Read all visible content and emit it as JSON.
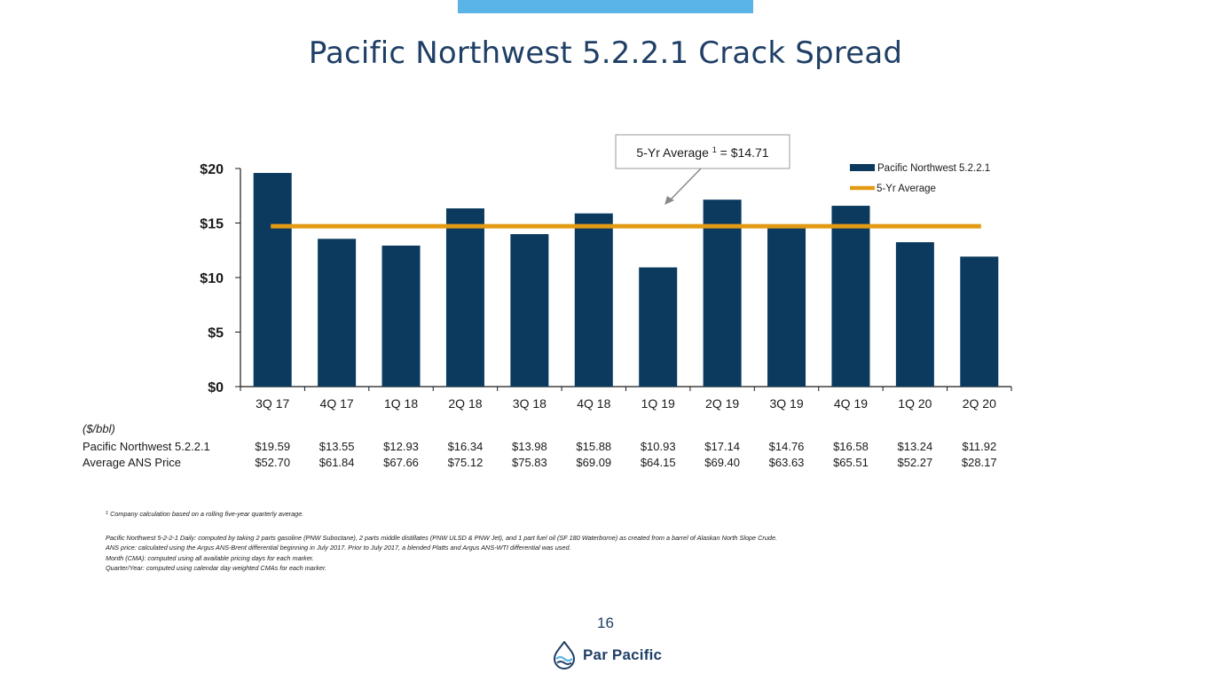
{
  "title": "Pacific Northwest 5.2.2.1 Crack Spread",
  "page_number": "16",
  "brand": {
    "name": "Par Pacific",
    "logo_icon": "droplet-wave-icon",
    "color": "#1f3f66",
    "accent": "#5bb4e6"
  },
  "callout": {
    "prefix": "5-Yr Average ",
    "sup": "1",
    "suffix": " = $14.71"
  },
  "chart_data": {
    "type": "bar",
    "categories": [
      "3Q 17",
      "4Q 17",
      "1Q 18",
      "2Q 18",
      "3Q 18",
      "4Q 18",
      "1Q 19",
      "2Q 19",
      "3Q 19",
      "4Q 19",
      "1Q 20",
      "2Q 20"
    ],
    "series": [
      {
        "name": "Pacific Northwest 5.2.2.1",
        "type": "bar",
        "color": "#0b3a5e",
        "values": [
          19.59,
          13.55,
          12.93,
          16.34,
          13.98,
          15.88,
          10.93,
          17.14,
          14.76,
          16.58,
          13.24,
          11.92
        ]
      },
      {
        "name": "5-Yr Average",
        "type": "line",
        "color": "#e39b15",
        "value": 14.71
      }
    ],
    "y_ticks": [
      "$0",
      "$5",
      "$10",
      "$15",
      "$20"
    ],
    "ylim": [
      0,
      20
    ],
    "legend": "top-right",
    "grid": false
  },
  "table": {
    "unit": "($/bbl)",
    "rows": [
      {
        "label": "Pacific Northwest 5.2.2.1",
        "values": [
          "$19.59",
          "$13.55",
          "$12.93",
          "$16.34",
          "$13.98",
          "$15.88",
          "$10.93",
          "$17.14",
          "$14.76",
          "$16.58",
          "$13.24",
          "$11.92"
        ]
      },
      {
        "label": "Average ANS Price",
        "values": [
          "$52.70",
          "$61.84",
          "$67.66",
          "$75.12",
          "$75.83",
          "$69.09",
          "$64.15",
          "$69.40",
          "$63.63",
          "$65.51",
          "$52.27",
          "$28.17"
        ]
      }
    ]
  },
  "footnotes": {
    "fn_mark": "1",
    "fn_text": " Company calculation based on a rolling five-year quarterly average.",
    "lines": [
      "Pacific Northwest 5-2-2-1 Daily: computed by taking 2 parts gasoline (PNW Suboctane), 2 parts middle distillates (PNW ULSD & PNW Jet), and 1 part fuel oil (SF 180 Waterborne) as created from a barrel of Alaskan North Slope Crude.",
      "ANS price: calculated using the Argus ANS-Brent differential beginning in July 2017.  Prior to July 2017, a blended Platts and Argus ANS-WTI differential was used.",
      "Month (CMA): computed using all available pricing days for each marker.",
      "Quarter/Year: computed using calendar day weighted CMAs for each marker."
    ]
  }
}
